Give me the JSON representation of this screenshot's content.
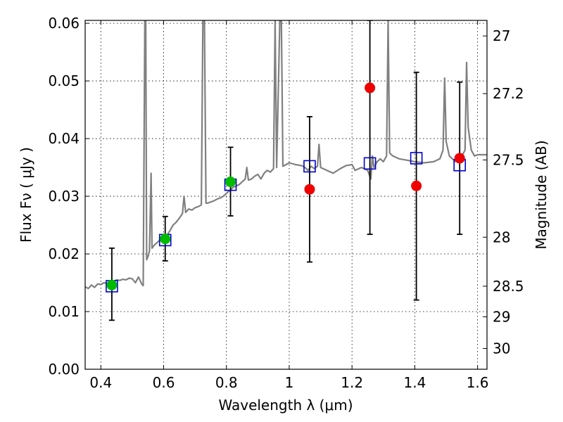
{
  "chart_data": {
    "type": "scatter",
    "xlabel": "Wavelength  λ (μm)",
    "ylabel": "Flux  Fν  ( μJy )",
    "y2label": "Magnitude (AB)",
    "xlim": [
      0.35,
      1.63
    ],
    "ylim": [
      0.0,
      0.0605
    ],
    "grid": true,
    "x_ticks": [
      0.4,
      0.6,
      0.8,
      1.0,
      1.2,
      1.4,
      1.6
    ],
    "x_tick_labels": [
      "0.4",
      "0.6",
      "0.8",
      "1",
      "1.2",
      "1.4",
      "1.6"
    ],
    "y_ticks": [
      0.0,
      0.01,
      0.02,
      0.03,
      0.04,
      0.05,
      0.06
    ],
    "y_tick_labels": [
      "0.00",
      "0.01",
      "0.02",
      "0.03",
      "0.04",
      "0.05",
      "0.06"
    ],
    "y2_ticks": [
      {
        "label": "27",
        "flux": 0.0578
      },
      {
        "label": "27.2",
        "flux": 0.0478
      },
      {
        "label": "27.5",
        "flux": 0.0363
      },
      {
        "label": "28",
        "flux": 0.0229
      },
      {
        "label": "28.5",
        "flux": 0.0144
      },
      {
        "label": "29",
        "flux": 0.0091
      },
      {
        "label": "30",
        "flux": 0.0036
      }
    ],
    "colors": {
      "model": "#808080",
      "green_points": "#00bb00",
      "red_points": "#ee0000",
      "model_squares": "#0000cc",
      "error_bars": "#000000"
    },
    "series": [
      {
        "marker": "line",
        "color": "#808080",
        "points": [
          [
            0.35,
            0.0143
          ],
          [
            0.36,
            0.014
          ],
          [
            0.37,
            0.0146
          ],
          [
            0.38,
            0.0142
          ],
          [
            0.39,
            0.0148
          ],
          [
            0.4,
            0.0147
          ],
          [
            0.41,
            0.015
          ],
          [
            0.42,
            0.0149
          ],
          [
            0.43,
            0.0152
          ],
          [
            0.44,
            0.0151
          ],
          [
            0.45,
            0.0155
          ],
          [
            0.46,
            0.0154
          ],
          [
            0.47,
            0.0156
          ],
          [
            0.48,
            0.0155
          ],
          [
            0.49,
            0.0158
          ],
          [
            0.5,
            0.0157
          ],
          [
            0.51,
            0.015
          ],
          [
            0.52,
            0.016
          ],
          [
            0.53,
            0.0148
          ],
          [
            0.535,
            0.0145
          ],
          [
            0.54,
            0.0605
          ],
          [
            0.543,
            0.0605
          ],
          [
            0.546,
            0.019
          ],
          [
            0.55,
            0.0195
          ],
          [
            0.555,
            0.0205
          ],
          [
            0.56,
            0.034
          ],
          [
            0.563,
            0.021
          ],
          [
            0.57,
            0.0215
          ],
          [
            0.58,
            0.022
          ],
          [
            0.59,
            0.0225
          ],
          [
            0.6,
            0.0228
          ],
          [
            0.61,
            0.0232
          ],
          [
            0.62,
            0.024
          ],
          [
            0.63,
            0.025
          ],
          [
            0.64,
            0.0255
          ],
          [
            0.65,
            0.0262
          ],
          [
            0.66,
            0.027
          ],
          [
            0.665,
            0.03
          ],
          [
            0.67,
            0.0272
          ],
          [
            0.68,
            0.0278
          ],
          [
            0.69,
            0.0276
          ],
          [
            0.7,
            0.028
          ],
          [
            0.71,
            0.0282
          ],
          [
            0.72,
            0.0285
          ],
          [
            0.725,
            0.0605
          ],
          [
            0.73,
            0.0605
          ],
          [
            0.735,
            0.0288
          ],
          [
            0.74,
            0.0288
          ],
          [
            0.75,
            0.029
          ],
          [
            0.76,
            0.0292
          ],
          [
            0.77,
            0.0295
          ],
          [
            0.78,
            0.0297
          ],
          [
            0.79,
            0.03
          ],
          [
            0.8,
            0.0305
          ],
          [
            0.81,
            0.031
          ],
          [
            0.82,
            0.0315
          ],
          [
            0.83,
            0.0318
          ],
          [
            0.84,
            0.032
          ],
          [
            0.85,
            0.0325
          ],
          [
            0.86,
            0.033
          ],
          [
            0.865,
            0.035
          ],
          [
            0.87,
            0.0328
          ],
          [
            0.88,
            0.033
          ],
          [
            0.89,
            0.0335
          ],
          [
            0.9,
            0.0338
          ],
          [
            0.91,
            0.033
          ],
          [
            0.92,
            0.034
          ],
          [
            0.93,
            0.0345
          ],
          [
            0.94,
            0.0342
          ],
          [
            0.95,
            0.0348
          ],
          [
            0.955,
            0.0605
          ],
          [
            0.96,
            0.035
          ],
          [
            0.97,
            0.0605
          ],
          [
            0.975,
            0.0605
          ],
          [
            0.98,
            0.0352
          ],
          [
            0.99,
            0.0355
          ],
          [
            1.0,
            0.0358
          ],
          [
            1.02,
            0.0355
          ],
          [
            1.04,
            0.0353
          ],
          [
            1.05,
            0.035
          ],
          [
            1.06,
            0.0345
          ],
          [
            1.07,
            0.0352
          ],
          [
            1.08,
            0.0348
          ],
          [
            1.09,
            0.0352
          ],
          [
            1.095,
            0.039
          ],
          [
            1.1,
            0.035
          ],
          [
            1.12,
            0.0345
          ],
          [
            1.14,
            0.034
          ],
          [
            1.16,
            0.0347
          ],
          [
            1.18,
            0.0353
          ],
          [
            1.2,
            0.0355
          ],
          [
            1.21,
            0.0345
          ],
          [
            1.23,
            0.035
          ],
          [
            1.25,
            0.0345
          ],
          [
            1.26,
            0.033
          ],
          [
            1.265,
            0.037
          ],
          [
            1.27,
            0.035
          ],
          [
            1.28,
            0.036
          ],
          [
            1.29,
            0.0365
          ],
          [
            1.3,
            0.036
          ],
          [
            1.31,
            0.037
          ],
          [
            1.315,
            0.0605
          ],
          [
            1.32,
            0.0375
          ],
          [
            1.33,
            0.037
          ],
          [
            1.35,
            0.0365
          ],
          [
            1.38,
            0.0362
          ],
          [
            1.4,
            0.036
          ],
          [
            1.43,
            0.0358
          ],
          [
            1.46,
            0.036
          ],
          [
            1.48,
            0.0365
          ],
          [
            1.49,
            0.038
          ],
          [
            1.495,
            0.0505
          ],
          [
            1.5,
            0.0395
          ],
          [
            1.51,
            0.037
          ],
          [
            1.52,
            0.0365
          ],
          [
            1.53,
            0.036
          ],
          [
            1.54,
            0.0365
          ],
          [
            1.55,
            0.037
          ],
          [
            1.56,
            0.038
          ],
          [
            1.565,
            0.0532
          ],
          [
            1.57,
            0.042
          ],
          [
            1.58,
            0.038
          ],
          [
            1.59,
            0.037
          ],
          [
            1.6,
            0.0372
          ],
          [
            1.63,
            0.0372
          ]
        ]
      },
      {
        "marker": "square-open",
        "color": "#0000cc",
        "points": [
          [
            0.435,
            0.0144
          ],
          [
            0.605,
            0.0224
          ],
          [
            0.813,
            0.032
          ],
          [
            1.065,
            0.0352
          ],
          [
            1.257,
            0.0357
          ],
          [
            1.405,
            0.0366
          ],
          [
            1.543,
            0.0354
          ]
        ]
      },
      {
        "marker": "circle",
        "color": "#00bb00",
        "points": [
          {
            "x": 0.435,
            "y": 0.0146,
            "yerr": [
              0.0085,
              0.021
            ]
          },
          {
            "x": 0.605,
            "y": 0.0226,
            "yerr": [
              0.0188,
              0.0265
            ]
          },
          {
            "x": 0.813,
            "y": 0.0325,
            "yerr": [
              0.0266,
              0.0385
            ]
          }
        ]
      },
      {
        "marker": "circle",
        "color": "#ee0000",
        "points": [
          {
            "x": 1.065,
            "y": 0.0312,
            "yerr": [
              0.0186,
              0.0438
            ]
          },
          {
            "x": 1.257,
            "y": 0.0488,
            "yerr": [
              0.0234,
              0.0605
            ]
          },
          {
            "x": 1.405,
            "y": 0.0318,
            "yerr": [
              0.012,
              0.0515
            ]
          },
          {
            "x": 1.543,
            "y": 0.0366,
            "yerr": [
              0.0234,
              0.0498
            ]
          }
        ]
      }
    ]
  }
}
